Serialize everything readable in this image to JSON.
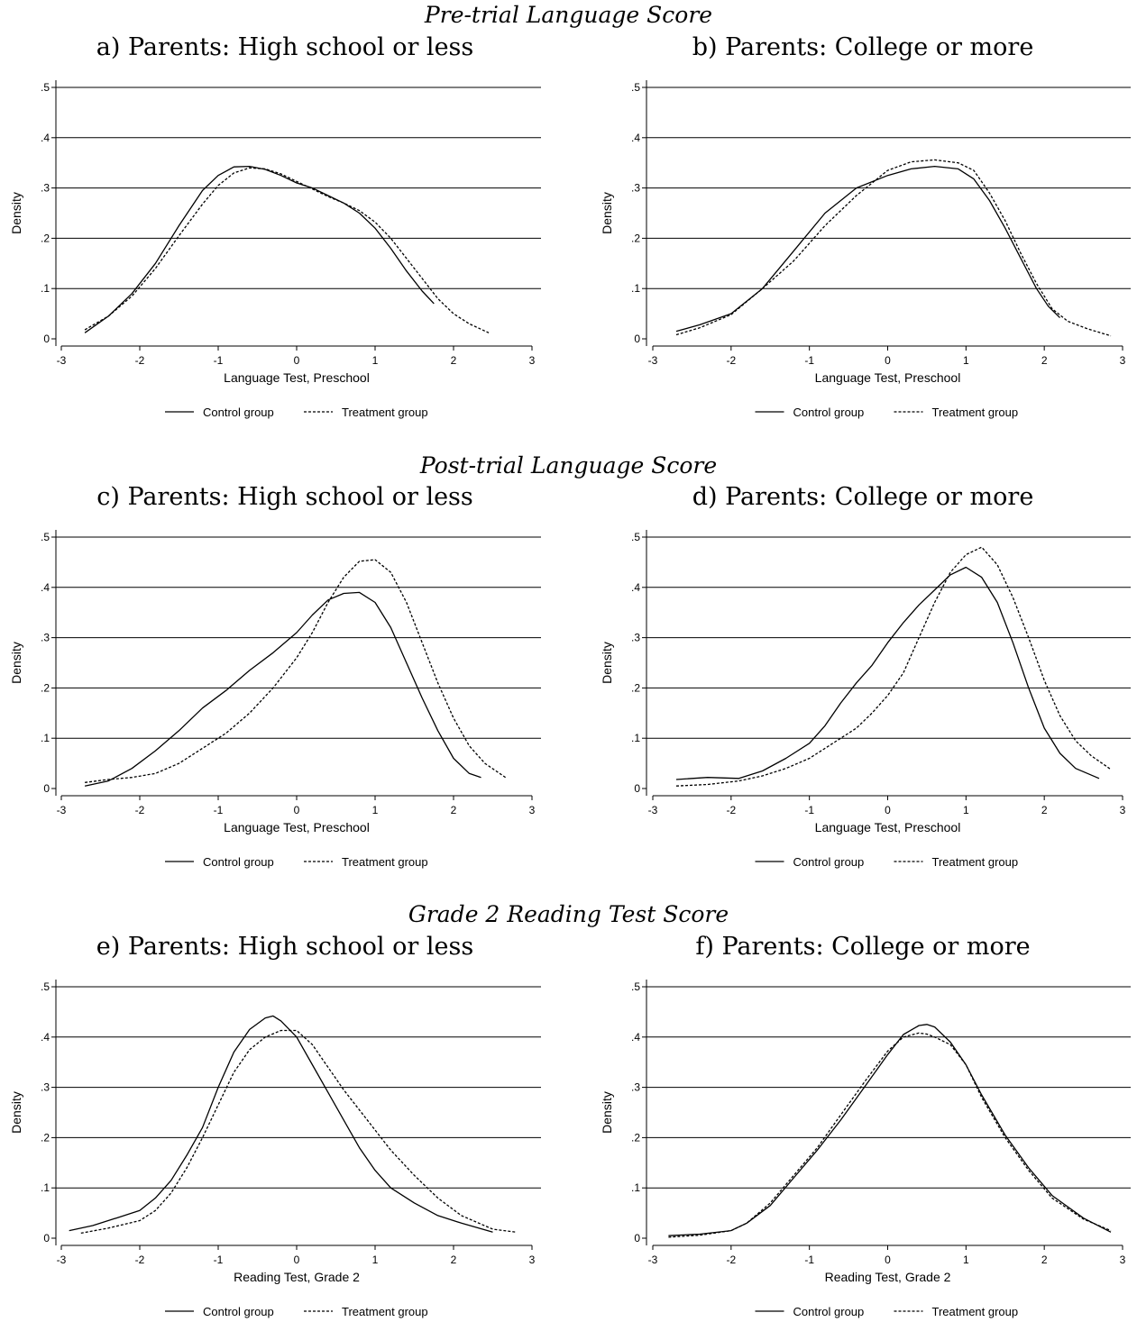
{
  "sections": [
    {
      "title": "Pre-trial Language Score"
    },
    {
      "title": "Post-trial Language Score"
    },
    {
      "title": "Grade 2 Reading Test Score"
    }
  ],
  "panels": [
    {
      "title": "a) Parents: High school or less"
    },
    {
      "title": "b) Parents: College or more"
    },
    {
      "title": "c) Parents: High school or less"
    },
    {
      "title": "d) Parents: College or more"
    },
    {
      "title": "e) Parents: High school or less"
    },
    {
      "title": "f) Parents: College or more"
    }
  ],
  "chart_data": [
    {
      "type": "line",
      "title": "a) Parents: High school or less",
      "xlabel": "Language Test, Preschool",
      "ylabel": "Density",
      "xlim": [
        -3,
        3
      ],
      "ylim": [
        0,
        0.5
      ],
      "xticks": [
        -3,
        -2,
        -1,
        0,
        1,
        2,
        3
      ],
      "yticks": [
        0,
        0.1,
        0.2,
        0.3,
        0.4,
        0.5
      ],
      "yticklabels": [
        "0",
        ".1",
        ".2",
        ".3",
        ".4",
        ".5"
      ],
      "grid": true,
      "legend": "bottom",
      "series": [
        {
          "name": "Control group",
          "style": "solid",
          "x": [
            -2.7,
            -2.4,
            -2.1,
            -1.8,
            -1.5,
            -1.2,
            -1.0,
            -0.8,
            -0.6,
            -0.4,
            -0.2,
            0.0,
            0.2,
            0.4,
            0.6,
            0.8,
            1.0,
            1.2,
            1.4,
            1.6,
            1.75
          ],
          "y": [
            0.012,
            0.045,
            0.09,
            0.15,
            0.225,
            0.295,
            0.325,
            0.342,
            0.343,
            0.337,
            0.325,
            0.31,
            0.3,
            0.285,
            0.27,
            0.25,
            0.22,
            0.18,
            0.135,
            0.095,
            0.07
          ]
        },
        {
          "name": "Treatment group",
          "style": "dashed",
          "x": [
            -2.7,
            -2.4,
            -2.1,
            -1.8,
            -1.5,
            -1.2,
            -1.0,
            -0.8,
            -0.6,
            -0.4,
            -0.2,
            0.0,
            0.2,
            0.4,
            0.6,
            0.8,
            1.0,
            1.2,
            1.4,
            1.6,
            1.8,
            2.0,
            2.2,
            2.45
          ],
          "y": [
            0.018,
            0.045,
            0.085,
            0.14,
            0.205,
            0.268,
            0.305,
            0.33,
            0.34,
            0.338,
            0.328,
            0.313,
            0.298,
            0.283,
            0.27,
            0.255,
            0.232,
            0.2,
            0.16,
            0.12,
            0.08,
            0.05,
            0.03,
            0.012
          ]
        }
      ]
    },
    {
      "type": "line",
      "title": "b) Parents: College or more",
      "xlabel": "Language Test, Preschool",
      "ylabel": "Density",
      "xlim": [
        -3,
        3
      ],
      "ylim": [
        0,
        0.5
      ],
      "xticks": [
        -3,
        -2,
        -1,
        0,
        1,
        2,
        3
      ],
      "yticks": [
        0,
        0.1,
        0.2,
        0.3,
        0.4,
        0.5
      ],
      "yticklabels": [
        "0",
        ".1",
        ".2",
        ".3",
        ".4",
        ".5"
      ],
      "grid": true,
      "legend": "bottom",
      "series": [
        {
          "name": "Control group",
          "style": "solid",
          "x": [
            -2.7,
            -2.4,
            -2.0,
            -1.6,
            -1.2,
            -0.8,
            -0.4,
            0.0,
            0.3,
            0.6,
            0.9,
            1.1,
            1.3,
            1.5,
            1.7,
            1.9,
            2.05,
            2.2
          ],
          "y": [
            0.015,
            0.028,
            0.05,
            0.1,
            0.175,
            0.25,
            0.3,
            0.325,
            0.338,
            0.343,
            0.338,
            0.318,
            0.275,
            0.22,
            0.16,
            0.1,
            0.065,
            0.042
          ]
        },
        {
          "name": "Treatment group",
          "style": "dashed",
          "x": [
            -2.7,
            -2.4,
            -2.0,
            -1.6,
            -1.2,
            -0.8,
            -0.4,
            0.0,
            0.3,
            0.6,
            0.9,
            1.1,
            1.3,
            1.5,
            1.7,
            1.9,
            2.1,
            2.3,
            2.55,
            2.85
          ],
          "y": [
            0.008,
            0.022,
            0.048,
            0.1,
            0.155,
            0.225,
            0.285,
            0.335,
            0.352,
            0.356,
            0.35,
            0.335,
            0.29,
            0.235,
            0.17,
            0.11,
            0.06,
            0.035,
            0.02,
            0.006
          ]
        }
      ]
    },
    {
      "type": "line",
      "title": "c) Parents: High school or less",
      "xlabel": "Language Test, Preschool",
      "ylabel": "Density",
      "xlim": [
        -3,
        3
      ],
      "ylim": [
        0,
        0.5
      ],
      "xticks": [
        -3,
        -2,
        -1,
        0,
        1,
        2,
        3
      ],
      "yticks": [
        0,
        0.1,
        0.2,
        0.3,
        0.4,
        0.5
      ],
      "yticklabels": [
        "0",
        ".1",
        ".2",
        ".3",
        ".4",
        ".5"
      ],
      "grid": true,
      "legend": "bottom",
      "series": [
        {
          "name": "Control group",
          "style": "solid",
          "x": [
            -2.7,
            -2.4,
            -2.1,
            -1.8,
            -1.5,
            -1.2,
            -0.9,
            -0.6,
            -0.3,
            0.0,
            0.2,
            0.4,
            0.6,
            0.8,
            1.0,
            1.2,
            1.4,
            1.6,
            1.8,
            2.0,
            2.2,
            2.35
          ],
          "y": [
            0.005,
            0.015,
            0.04,
            0.075,
            0.115,
            0.16,
            0.195,
            0.235,
            0.27,
            0.31,
            0.345,
            0.375,
            0.388,
            0.39,
            0.37,
            0.32,
            0.25,
            0.18,
            0.115,
            0.06,
            0.03,
            0.022
          ]
        },
        {
          "name": "Treatment group",
          "style": "dashed",
          "x": [
            -2.7,
            -2.4,
            -2.1,
            -1.8,
            -1.5,
            -1.2,
            -0.9,
            -0.6,
            -0.3,
            0.0,
            0.2,
            0.4,
            0.6,
            0.8,
            1.0,
            1.2,
            1.4,
            1.6,
            1.8,
            2.0,
            2.2,
            2.4,
            2.68
          ],
          "y": [
            0.012,
            0.018,
            0.022,
            0.03,
            0.05,
            0.08,
            0.11,
            0.15,
            0.2,
            0.26,
            0.31,
            0.37,
            0.42,
            0.452,
            0.455,
            0.43,
            0.37,
            0.29,
            0.21,
            0.14,
            0.085,
            0.05,
            0.02
          ]
        }
      ]
    },
    {
      "type": "line",
      "title": "d) Parents: College or more",
      "xlabel": "Language Test, Preschool",
      "ylabel": "Density",
      "xlim": [
        -3,
        3
      ],
      "ylim": [
        0,
        0.5
      ],
      "xticks": [
        -3,
        -2,
        -1,
        0,
        1,
        2,
        3
      ],
      "yticks": [
        0,
        0.1,
        0.2,
        0.3,
        0.4,
        0.5
      ],
      "yticklabels": [
        "0",
        ".1",
        ".2",
        ".3",
        ".4",
        ".5"
      ],
      "grid": true,
      "legend": "bottom",
      "series": [
        {
          "name": "Control group",
          "style": "solid",
          "x": [
            -2.7,
            -2.3,
            -1.9,
            -1.6,
            -1.3,
            -1.0,
            -0.8,
            -0.6,
            -0.4,
            -0.2,
            0.0,
            0.2,
            0.4,
            0.6,
            0.8,
            1.0,
            1.2,
            1.4,
            1.6,
            1.8,
            2.0,
            2.2,
            2.4,
            2.7
          ],
          "y": [
            0.018,
            0.022,
            0.02,
            0.035,
            0.06,
            0.09,
            0.125,
            0.17,
            0.21,
            0.245,
            0.29,
            0.33,
            0.365,
            0.395,
            0.425,
            0.44,
            0.42,
            0.37,
            0.29,
            0.2,
            0.12,
            0.07,
            0.04,
            0.02
          ]
        },
        {
          "name": "Treatment group",
          "style": "dashed",
          "x": [
            -2.7,
            -2.3,
            -1.9,
            -1.6,
            -1.3,
            -1.0,
            -0.8,
            -0.6,
            -0.4,
            -0.2,
            0.0,
            0.2,
            0.4,
            0.6,
            0.8,
            1.0,
            1.2,
            1.4,
            1.6,
            1.8,
            2.0,
            2.2,
            2.4,
            2.6,
            2.85
          ],
          "y": [
            0.005,
            0.008,
            0.015,
            0.025,
            0.04,
            0.06,
            0.08,
            0.1,
            0.12,
            0.15,
            0.185,
            0.23,
            0.3,
            0.37,
            0.43,
            0.465,
            0.48,
            0.445,
            0.38,
            0.3,
            0.215,
            0.145,
            0.095,
            0.065,
            0.038
          ]
        }
      ]
    },
    {
      "type": "line",
      "title": "e) Parents: High school or less",
      "xlabel": "Reading Test, Grade 2",
      "ylabel": "Density",
      "xlim": [
        -3,
        3
      ],
      "ylim": [
        0,
        0.5
      ],
      "xticks": [
        -3,
        -2,
        -1,
        0,
        1,
        2,
        3
      ],
      "yticks": [
        0,
        0.1,
        0.2,
        0.3,
        0.4,
        0.5
      ],
      "yticklabels": [
        "0",
        ".1",
        ".2",
        ".3",
        ".4",
        ".5"
      ],
      "grid": true,
      "legend": "bottom",
      "series": [
        {
          "name": "Control group",
          "style": "solid",
          "x": [
            -2.9,
            -2.6,
            -2.3,
            -2.0,
            -1.8,
            -1.6,
            -1.4,
            -1.2,
            -1.0,
            -0.8,
            -0.6,
            -0.4,
            -0.3,
            -0.2,
            0.0,
            0.2,
            0.4,
            0.6,
            0.8,
            1.0,
            1.2,
            1.5,
            1.8,
            2.1,
            2.5
          ],
          "y": [
            0.015,
            0.025,
            0.04,
            0.055,
            0.08,
            0.115,
            0.165,
            0.22,
            0.3,
            0.37,
            0.415,
            0.438,
            0.442,
            0.432,
            0.4,
            0.345,
            0.29,
            0.235,
            0.18,
            0.135,
            0.1,
            0.07,
            0.045,
            0.03,
            0.012
          ]
        },
        {
          "name": "Treatment group",
          "style": "dashed",
          "x": [
            -2.75,
            -2.4,
            -2.0,
            -1.8,
            -1.6,
            -1.4,
            -1.2,
            -1.0,
            -0.8,
            -0.6,
            -0.4,
            -0.2,
            0.0,
            0.2,
            0.4,
            0.6,
            0.8,
            1.0,
            1.2,
            1.5,
            1.8,
            2.1,
            2.5,
            2.8
          ],
          "y": [
            0.01,
            0.02,
            0.035,
            0.055,
            0.09,
            0.14,
            0.2,
            0.265,
            0.33,
            0.375,
            0.4,
            0.413,
            0.413,
            0.385,
            0.34,
            0.295,
            0.255,
            0.215,
            0.175,
            0.125,
            0.08,
            0.045,
            0.018,
            0.012
          ]
        }
      ]
    },
    {
      "type": "line",
      "title": "f) Parents: College or more",
      "xlabel": "Reading Test, Grade 2",
      "ylabel": "Density",
      "xlim": [
        -3,
        3
      ],
      "ylim": [
        0,
        0.5
      ],
      "xticks": [
        -3,
        -2,
        -1,
        0,
        1,
        2,
        3
      ],
      "yticks": [
        0,
        0.1,
        0.2,
        0.3,
        0.4,
        0.5
      ],
      "yticklabels": [
        "0",
        ".1",
        ".2",
        ".3",
        ".4",
        ".5"
      ],
      "grid": true,
      "legend": "bottom",
      "series": [
        {
          "name": "Control group",
          "style": "solid",
          "x": [
            -2.8,
            -2.4,
            -2.0,
            -1.8,
            -1.5,
            -1.2,
            -0.9,
            -0.6,
            -0.3,
            0.0,
            0.2,
            0.4,
            0.5,
            0.6,
            0.8,
            1.0,
            1.2,
            1.5,
            1.8,
            2.1,
            2.5,
            2.85
          ],
          "y": [
            0.005,
            0.008,
            0.015,
            0.03,
            0.065,
            0.12,
            0.175,
            0.235,
            0.3,
            0.365,
            0.405,
            0.423,
            0.425,
            0.42,
            0.39,
            0.345,
            0.285,
            0.205,
            0.14,
            0.085,
            0.04,
            0.012
          ]
        },
        {
          "name": "Treatment group",
          "style": "dashed",
          "x": [
            -2.8,
            -2.4,
            -2.0,
            -1.8,
            -1.5,
            -1.2,
            -0.9,
            -0.6,
            -0.3,
            0.0,
            0.2,
            0.4,
            0.5,
            0.6,
            0.8,
            1.0,
            1.2,
            1.5,
            1.8,
            2.1,
            2.5,
            2.85
          ],
          "y": [
            0.002,
            0.006,
            0.015,
            0.03,
            0.07,
            0.125,
            0.18,
            0.245,
            0.31,
            0.372,
            0.4,
            0.408,
            0.406,
            0.4,
            0.385,
            0.345,
            0.28,
            0.2,
            0.135,
            0.08,
            0.038,
            0.015
          ]
        }
      ]
    }
  ]
}
